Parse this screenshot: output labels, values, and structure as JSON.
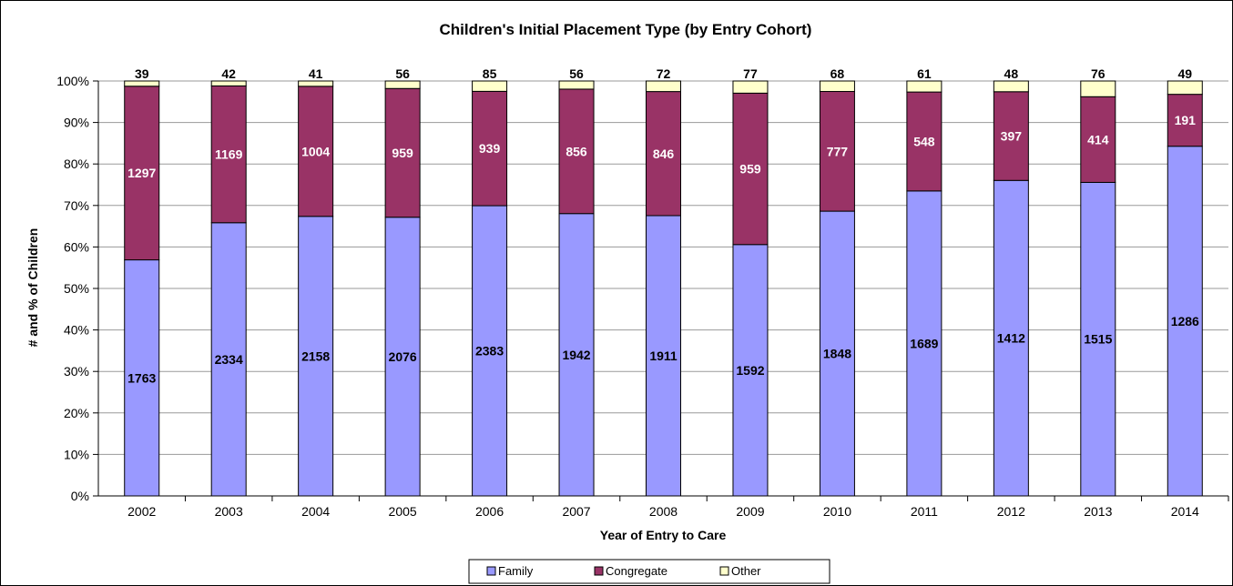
{
  "chart_data": {
    "type": "bar",
    "stacked": "percent",
    "title": "Children's Initial Placement Type (by Entry Cohort)",
    "xlabel": "Year of Entry to Care",
    "ylabel": "# and % of Children",
    "ylim": [
      0,
      100
    ],
    "yticks": [
      "0%",
      "10%",
      "20%",
      "30%",
      "40%",
      "50%",
      "60%",
      "70%",
      "80%",
      "90%",
      "100%"
    ],
    "categories": [
      "2002",
      "2003",
      "2004",
      "2005",
      "2006",
      "2007",
      "2008",
      "2009",
      "2010",
      "2011",
      "2012",
      "2013",
      "2014"
    ],
    "series": [
      {
        "name": "Family",
        "color": "#9999ff",
        "label_color": "#000000",
        "values": [
          1763,
          2334,
          2158,
          2076,
          2383,
          1942,
          1911,
          1592,
          1848,
          1689,
          1412,
          1515,
          1286
        ]
      },
      {
        "name": "Congregate",
        "color": "#993366",
        "label_color": "#ffffff",
        "values": [
          1297,
          1169,
          1004,
          959,
          939,
          856,
          846,
          959,
          777,
          548,
          397,
          414,
          191
        ]
      },
      {
        "name": "Other",
        "color": "#ffffcc",
        "label_color": "#000000",
        "values": [
          39,
          42,
          41,
          56,
          85,
          56,
          72,
          77,
          68,
          61,
          48,
          76,
          49
        ]
      }
    ],
    "grid": true,
    "legend_position": "bottom"
  }
}
